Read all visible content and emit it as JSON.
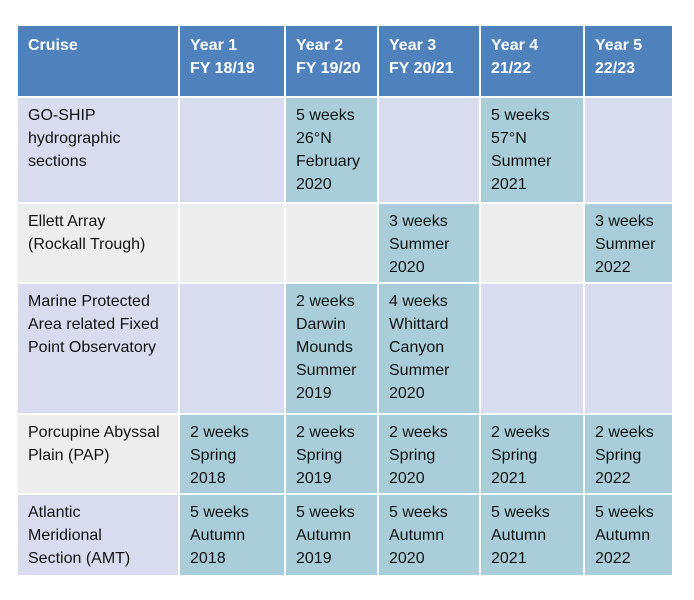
{
  "headers": [
    {
      "line1": "Cruise",
      "line2": ""
    },
    {
      "line1": "Year 1",
      "line2": "FY 18/19"
    },
    {
      "line1": "Year 2",
      "line2": "FY 19/20"
    },
    {
      "line1": "Year 3",
      "line2": "FY 20/21"
    },
    {
      "line1": "Year 4",
      "line2": "21/22"
    },
    {
      "line1": "Year 5",
      "line2": "22/23"
    }
  ],
  "rows": [
    {
      "name": [
        "GO-SHIP",
        "hydrographic",
        "sections"
      ],
      "cells": [
        [],
        [
          "5 weeks",
          "26°N",
          "February",
          "2020"
        ],
        [],
        [
          "5 weeks",
          "57°N",
          "Summer",
          "2021"
        ],
        []
      ]
    },
    {
      "name": [
        "Ellett Array",
        "(Rockall Trough)"
      ],
      "cells": [
        [],
        [],
        [
          "3 weeks",
          "Summer",
          "2020"
        ],
        [],
        [
          "3 weeks",
          "Summer",
          "2022"
        ]
      ]
    },
    {
      "name": [
        "Marine Protected",
        "Area related Fixed",
        "Point Observatory"
      ],
      "cells": [
        [],
        [
          "2 weeks",
          "Darwin",
          "Mounds",
          "Summer",
          "2019"
        ],
        [
          "4 weeks",
          "Whittard",
          "Canyon",
          "Summer",
          "2020"
        ],
        [],
        []
      ]
    },
    {
      "name": [
        "Porcupine Abyssal",
        "Plain (PAP)"
      ],
      "cells": [
        [
          "2 weeks",
          "Spring",
          "2018"
        ],
        [
          "2 weeks",
          "Spring",
          "2019"
        ],
        [
          "2 weeks",
          "Spring",
          "2020"
        ],
        [
          "2 weeks",
          "Spring",
          "2021"
        ],
        [
          "2 weeks",
          "Spring",
          "2022"
        ]
      ]
    },
    {
      "name": [
        "Atlantic",
        "Meridional",
        "Section (AMT)"
      ],
      "cells": [
        [
          "5 weeks",
          "Autumn",
          "2018"
        ],
        [
          "5 weeks",
          "Autumn",
          "2019"
        ],
        [
          "5 weeks",
          "Autumn",
          "2020"
        ],
        [
          "5 weeks",
          "Autumn",
          "2021"
        ],
        [
          "5 weeks",
          "Autumn",
          "2022"
        ]
      ]
    }
  ],
  "colors": {
    "header": "#4f81bd",
    "row_lavender": "#d9dcef",
    "row_grey": "#ededed",
    "filled_cell": "#a9ced9"
  }
}
